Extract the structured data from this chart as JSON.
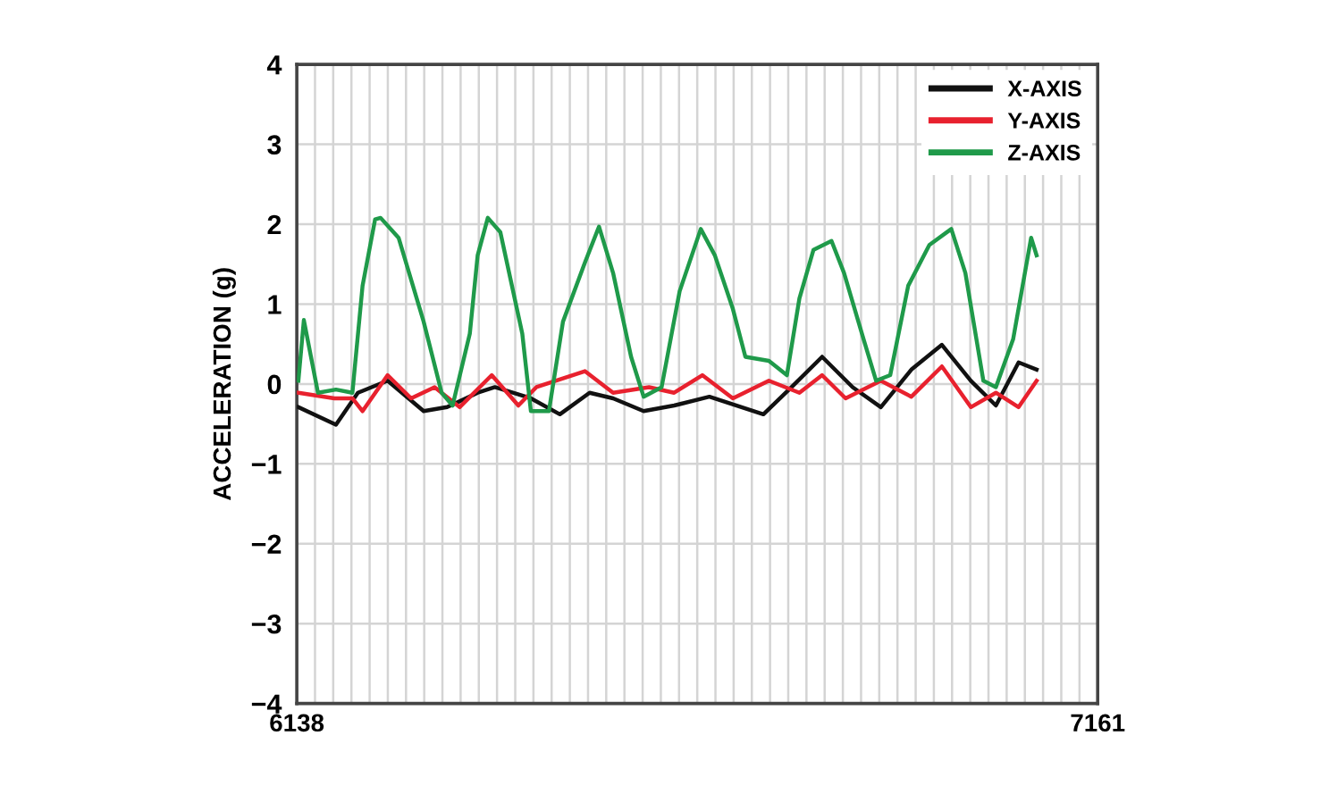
{
  "chart_data": {
    "type": "line",
    "ylabel": "ACCELERATION (g)",
    "xlim": [
      6138,
      7161
    ],
    "xticks": [
      6138,
      {
        "value": 6161.25,
        "label": null
      },
      {
        "value": 6184.5,
        "label": null
      },
      {
        "value": 6207.75,
        "label": null
      },
      {
        "value": 6231,
        "label": null
      },
      {
        "value": 6254.25,
        "label": null
      },
      {
        "value": 6277.5,
        "label": null
      },
      {
        "value": 6300.75,
        "label": null
      },
      {
        "value": 6324,
        "label": null
      },
      {
        "value": 6347.25,
        "label": null
      },
      {
        "value": 6370.5,
        "label": null
      },
      {
        "value": 6393.75,
        "label": null
      },
      {
        "value": 6417,
        "label": null
      },
      {
        "value": 6440.25,
        "label": null
      },
      {
        "value": 6463.5,
        "label": null
      },
      {
        "value": 6486.75,
        "label": null
      },
      {
        "value": 6510,
        "label": null
      },
      {
        "value": 6533.25,
        "label": null
      },
      {
        "value": 6556.5,
        "label": null
      },
      {
        "value": 6579.75,
        "label": null
      },
      {
        "value": 6603,
        "label": null
      },
      {
        "value": 6626.25,
        "label": null
      },
      {
        "value": 6649.5,
        "label": null
      },
      {
        "value": 6672.75,
        "label": null
      },
      {
        "value": 6696,
        "label": null
      },
      {
        "value": 6719.25,
        "label": null
      },
      {
        "value": 6742.5,
        "label": null
      },
      {
        "value": 6765.75,
        "label": null
      },
      {
        "value": 6789,
        "label": null
      },
      {
        "value": 6812.25,
        "label": null
      },
      {
        "value": 6835.5,
        "label": null
      },
      {
        "value": 6858.75,
        "label": null
      },
      {
        "value": 6882,
        "label": null
      },
      {
        "value": 6905.25,
        "label": null
      },
      {
        "value": 6928.5,
        "label": null
      },
      {
        "value": 6951.75,
        "label": null
      },
      {
        "value": 6975,
        "label": null
      },
      {
        "value": 6998.25,
        "label": null
      },
      {
        "value": 7021.5,
        "label": null
      },
      {
        "value": 7044.75,
        "label": null
      },
      {
        "value": 7068,
        "label": null
      },
      {
        "value": 7091.25,
        "label": null
      },
      {
        "value": 7114.5,
        "label": null
      },
      {
        "value": 7137.75,
        "label": null
      },
      7161
    ],
    "ylim": [
      -4,
      4
    ],
    "yticks": [
      {
        "value": -4,
        "label": "−4"
      },
      {
        "value": -3,
        "label": "−3"
      },
      {
        "value": -2,
        "label": "−2"
      },
      {
        "value": -1,
        "label": "−1"
      },
      0,
      1,
      2,
      3,
      4
    ],
    "grid": true,
    "legend": "top right",
    "line_style": "solid",
    "marker": "none",
    "series": [
      {
        "name": "X-AXIS",
        "color": "#111111",
        "x": [
          6140,
          6188,
          6216,
          6254,
          6300,
          6330,
          6369,
          6391,
          6437,
          6474,
          6512,
          6542,
          6581,
          6620,
          6665,
          6734,
          6770,
          6809,
          6848,
          6884,
          6923,
          6962,
          6999,
          7031,
          7060,
          7083
        ],
        "values": [
          -0.29,
          -0.51,
          -0.11,
          0.04,
          -0.34,
          -0.29,
          -0.11,
          -0.04,
          -0.18,
          -0.38,
          -0.11,
          -0.18,
          -0.34,
          -0.27,
          -0.16,
          -0.38,
          -0.04,
          0.34,
          -0.04,
          -0.29,
          0.18,
          0.49,
          0.04,
          -0.27,
          0.27,
          0.18
        ]
      },
      {
        "name": "Y-AXIS",
        "color": "#e8212e",
        "x": [
          6140,
          6186,
          6209,
          6222,
          6254,
          6284,
          6314,
          6346,
          6387,
          6421,
          6444,
          6506,
          6542,
          6588,
          6620,
          6656,
          6695,
          6741,
          6780,
          6809,
          6839,
          6884,
          6923,
          6962,
          6999,
          7031,
          7060,
          7083
        ],
        "values": [
          -0.11,
          -0.18,
          -0.18,
          -0.34,
          0.11,
          -0.18,
          -0.04,
          -0.29,
          0.11,
          -0.27,
          -0.04,
          0.16,
          -0.11,
          -0.04,
          -0.11,
          0.11,
          -0.18,
          0.04,
          -0.11,
          0.11,
          -0.18,
          0.04,
          -0.16,
          0.22,
          -0.29,
          -0.11,
          -0.29,
          0.04
        ]
      },
      {
        "name": "Z-AXIS",
        "color": "#1f9a4a",
        "x": [
          6140,
          6147,
          6165,
          6188,
          6209,
          6222,
          6238,
          6245,
          6268,
          6300,
          6323,
          6337,
          6359,
          6369,
          6382,
          6398,
          6426,
          6437,
          6460,
          6478,
          6506,
          6524,
          6542,
          6565,
          6581,
          6604,
          6627,
          6654,
          6672,
          6695,
          6711,
          6741,
          6764,
          6780,
          6798,
          6821,
          6837,
          6862,
          6878,
          6896,
          6919,
          6946,
          6974,
          6992,
          7015,
          7031,
          7053,
          7076,
          7083
        ],
        "values": [
          0.04,
          0.8,
          -0.11,
          -0.07,
          -0.11,
          1.23,
          2.06,
          2.08,
          1.83,
          0.78,
          -0.11,
          -0.27,
          0.63,
          1.61,
          2.08,
          1.9,
          0.63,
          -0.34,
          -0.34,
          0.78,
          1.52,
          1.97,
          1.39,
          0.34,
          -0.16,
          -0.04,
          1.16,
          1.94,
          1.61,
          0.94,
          0.34,
          0.29,
          0.11,
          1.07,
          1.68,
          1.79,
          1.39,
          0.56,
          0.04,
          0.11,
          1.23,
          1.74,
          1.94,
          1.39,
          0.04,
          -0.04,
          0.56,
          1.83,
          1.61
        ]
      }
    ]
  }
}
